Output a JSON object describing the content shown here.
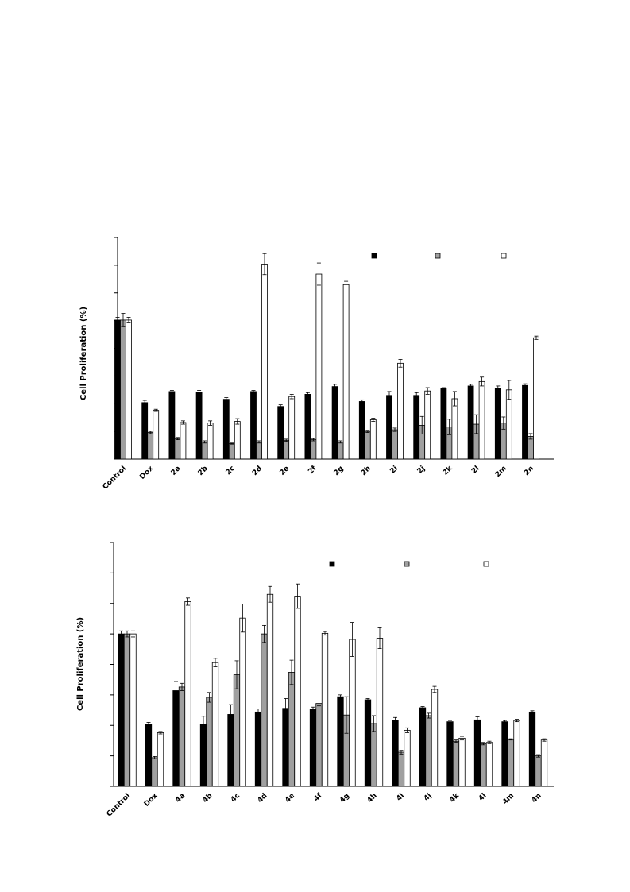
{
  "chart_data": [
    {
      "type": "bar",
      "ylabel": "Cell Proliferation (%)",
      "ylim": [
        0,
        400
      ],
      "yticks_count": 9,
      "categories": [
        "Control",
        "Dox",
        "2a",
        "2b",
        "2c",
        "2d",
        "2e",
        "2f",
        "2g",
        "2h",
        "2i",
        "2j",
        "2k",
        "2l",
        "2m",
        "2n"
      ],
      "series": [
        {
          "fill": "#000000",
          "values": [
            251,
            102,
            122,
            121,
            108,
            122,
            95,
            117,
            131,
            104,
            115,
            115,
            127,
            132,
            128,
            133
          ],
          "errors": [
            5,
            4,
            2,
            3,
            3,
            2,
            3,
            3,
            4,
            3,
            7,
            5,
            2,
            3,
            4,
            3
          ]
        },
        {
          "fill": "#a0a0a0",
          "values": [
            251,
            48,
            37,
            31,
            28,
            31,
            34,
            35,
            31,
            50,
            53,
            61,
            58,
            63,
            65,
            41
          ],
          "errors": [
            12,
            2,
            2,
            2,
            1,
            2,
            2,
            2,
            2,
            2,
            3,
            16,
            14,
            17,
            11,
            5
          ]
        },
        {
          "fill": "#ffffff",
          "values": [
            251,
            88,
            66,
            65,
            68,
            352,
            113,
            334,
            315,
            71,
            173,
            123,
            109,
            140,
            125,
            219
          ],
          "errors": [
            5,
            2,
            3,
            4,
            5,
            19,
            4,
            20,
            6,
            3,
            7,
            6,
            13,
            8,
            17,
            3
          ]
        }
      ],
      "legend": "top-right",
      "legend_labels": [
        "",
        "",
        ""
      ]
    },
    {
      "type": "bar",
      "ylabel": "Cell  Proliferation  (%)",
      "ylim": [
        0,
        400
      ],
      "yticks_count": 9,
      "categories": [
        "Control",
        "Dox",
        "4a",
        "4b",
        "4c",
        "4d",
        "4e",
        "4f",
        "4g",
        "4h",
        "4i",
        "4j",
        "4k",
        "4l",
        "4m",
        "4n"
      ],
      "series": [
        {
          "fill": "#000000",
          "values": [
            250,
            102,
            157,
            102,
            118,
            122,
            128,
            126,
            147,
            142,
            108,
            129,
            106,
            109,
            106,
            122
          ],
          "errors": [
            5,
            3,
            15,
            13,
            16,
            5,
            16,
            4,
            3,
            2,
            5,
            2,
            2,
            5,
            2,
            2
          ]
        },
        {
          "fill": "#a0a0a0",
          "values": [
            250,
            47,
            163,
            146,
            183,
            250,
            187,
            136,
            117,
            103,
            56,
            116,
            74,
            70,
            77,
            50
          ],
          "errors": [
            5,
            2,
            6,
            8,
            23,
            14,
            20,
            4,
            30,
            13,
            3,
            4,
            2,
            2,
            1,
            2
          ]
        },
        {
          "fill": "#ffffff",
          "values": [
            250,
            88,
            303,
            203,
            276,
            315,
            312,
            251,
            241,
            243,
            92,
            159,
            79,
            72,
            108,
            76
          ],
          "errors": [
            5,
            2,
            6,
            7,
            23,
            13,
            20,
            3,
            28,
            17,
            4,
            5,
            3,
            2,
            2,
            2
          ]
        }
      ],
      "legend": "top-right",
      "legend_labels": [
        "",
        "",
        ""
      ]
    }
  ]
}
